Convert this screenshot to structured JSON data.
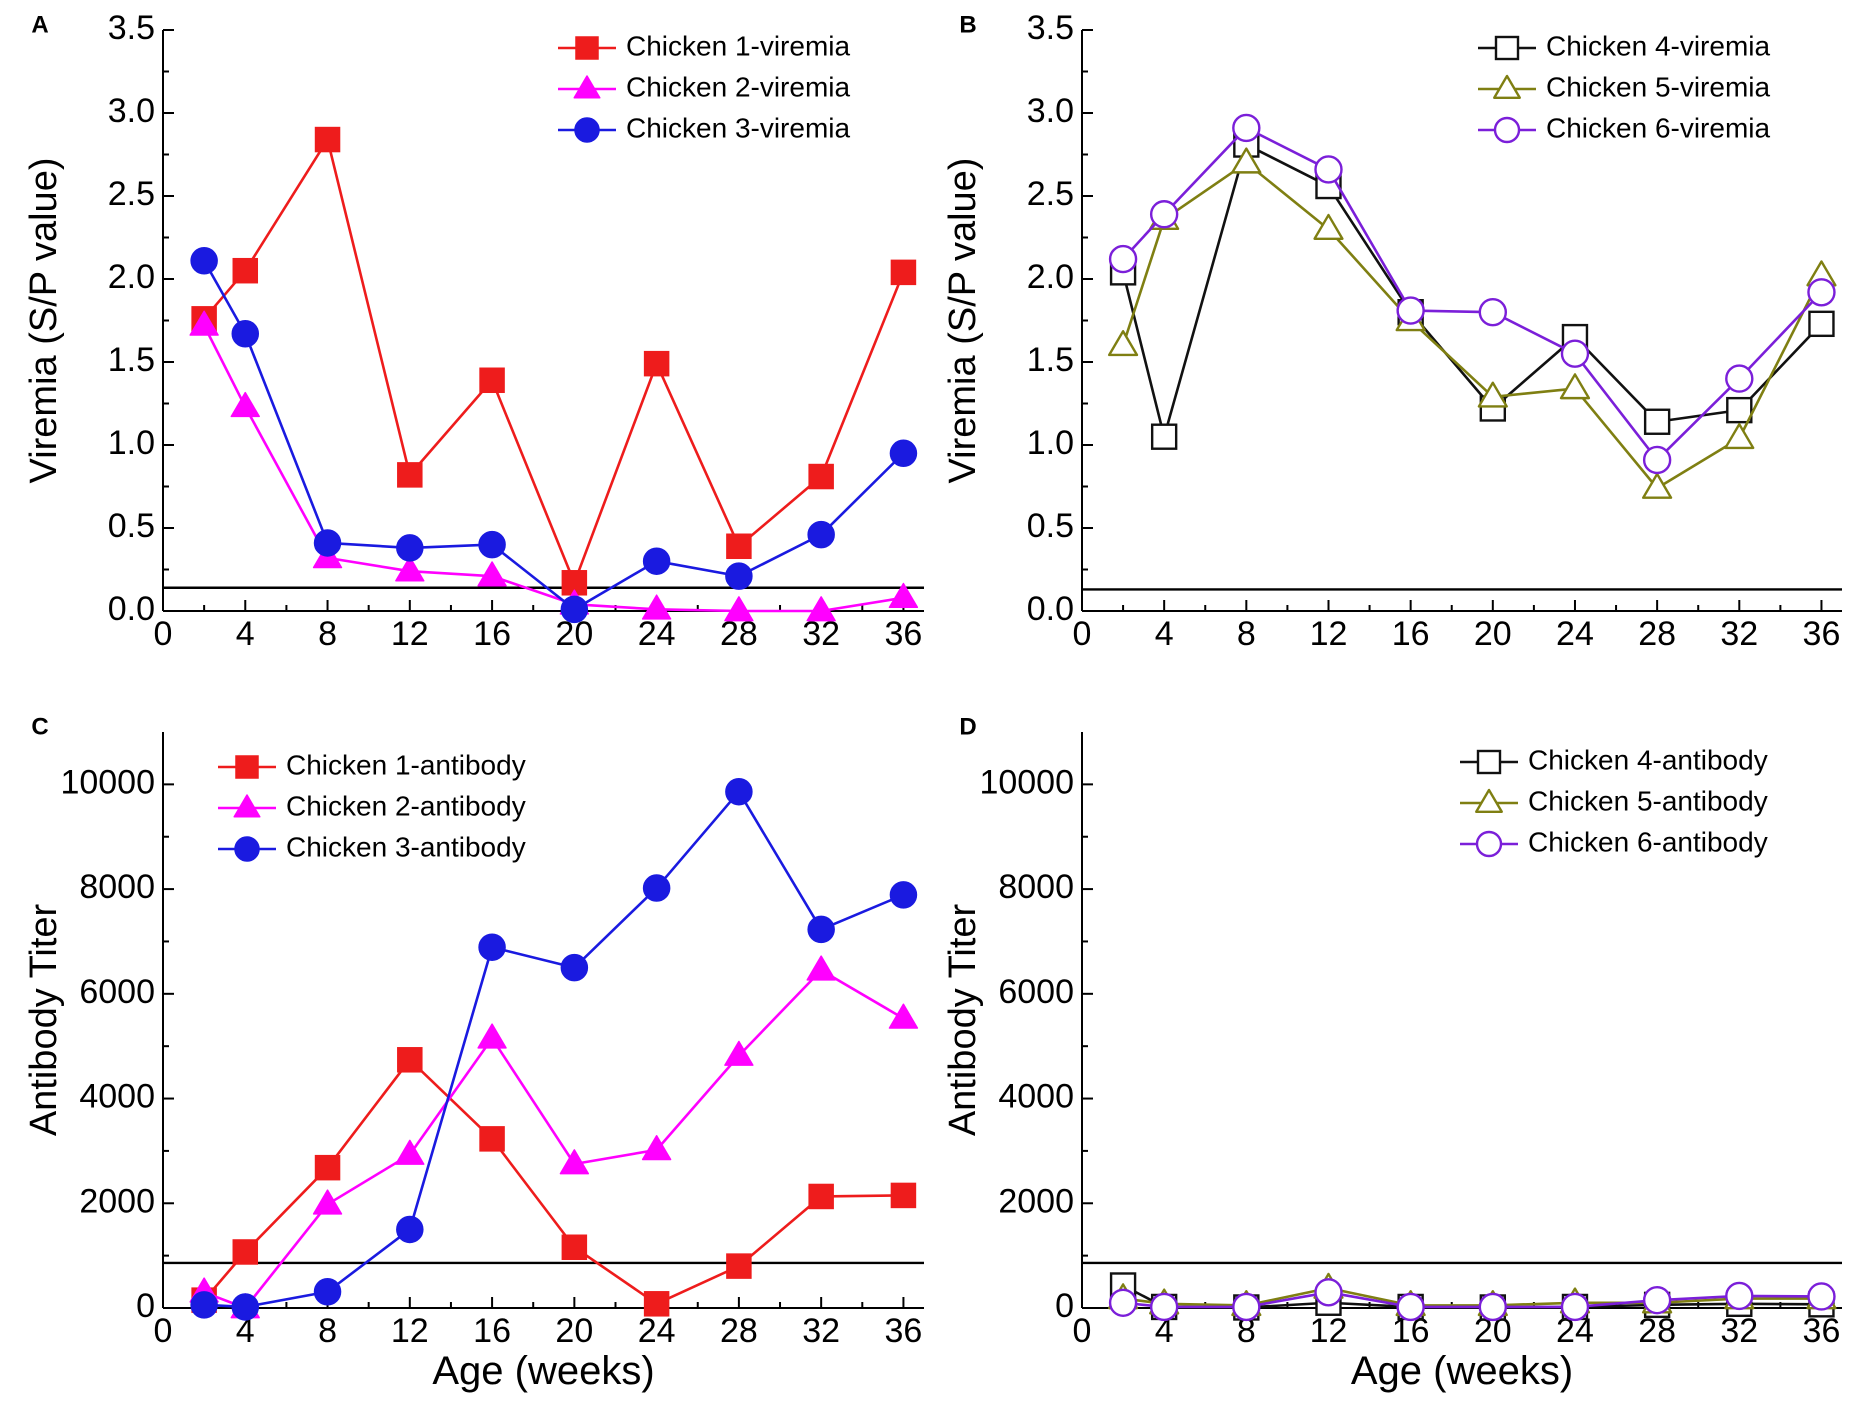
{
  "figure": {
    "x_categories": [
      2,
      4,
      8,
      12,
      16,
      20,
      24,
      28,
      32,
      36
    ]
  },
  "chart_data": [
    {
      "id": "A",
      "panel_label": "A",
      "type": "line",
      "xlabel": "",
      "ylabel": "Viremia (S/P value)",
      "xlim": [
        0,
        37
      ],
      "ylim": [
        0,
        3.5
      ],
      "xticks": [
        "0",
        "4",
        "8",
        "12",
        "16",
        "20",
        "24",
        "28",
        "32",
        "36"
      ],
      "xtick_values": [
        0,
        4,
        8,
        12,
        16,
        20,
        24,
        28,
        32,
        36
      ],
      "yticks": [
        "0.0",
        "0.5",
        "1.0",
        "1.5",
        "2.0",
        "2.5",
        "3.0",
        "3.5"
      ],
      "ytick_values": [
        0,
        0.5,
        1.0,
        1.5,
        2.0,
        2.5,
        3.0,
        3.5
      ],
      "cutoff": 0.14,
      "legend_position": "top-right",
      "x": [
        2,
        4,
        8,
        12,
        16,
        20,
        24,
        28,
        32,
        36
      ],
      "series": [
        {
          "name": "Chicken 1-viremia",
          "marker": "square",
          "filled": true,
          "color": "#ee1c1c",
          "values": [
            1.76,
            2.05,
            2.84,
            0.82,
            1.39,
            0.17,
            1.49,
            0.39,
            0.81,
            2.04
          ]
        },
        {
          "name": "Chicken 2-viremia",
          "marker": "triangle",
          "filled": true,
          "color": "#ff00ff",
          "values": [
            1.72,
            1.23,
            0.32,
            0.24,
            0.21,
            0.04,
            0.01,
            0.0,
            0.0,
            0.08
          ]
        },
        {
          "name": "Chicken 3-viremia",
          "marker": "circle",
          "filled": true,
          "color": "#1a1ae0",
          "values": [
            2.11,
            1.67,
            0.41,
            0.38,
            0.4,
            0.01,
            0.3,
            0.21,
            0.46,
            0.95
          ]
        }
      ]
    },
    {
      "id": "B",
      "panel_label": "B",
      "type": "line",
      "xlabel": "",
      "ylabel": "Viremia (S/P value)",
      "xlim": [
        0,
        37
      ],
      "ylim": [
        0,
        3.5
      ],
      "xticks": [
        "0",
        "4",
        "8",
        "12",
        "16",
        "20",
        "24",
        "28",
        "32",
        "36"
      ],
      "xtick_values": [
        0,
        4,
        8,
        12,
        16,
        20,
        24,
        28,
        32,
        36
      ],
      "yticks": [
        "0.0",
        "0.5",
        "1.0",
        "1.5",
        "2.0",
        "2.5",
        "3.0",
        "3.5"
      ],
      "ytick_values": [
        0,
        0.5,
        1.0,
        1.5,
        2.0,
        2.5,
        3.0,
        3.5
      ],
      "cutoff": 0.13,
      "legend_position": "top-right",
      "x": [
        2,
        4,
        8,
        12,
        16,
        20,
        24,
        28,
        32,
        36
      ],
      "series": [
        {
          "name": "Chicken 4-viremia",
          "marker": "square",
          "filled": false,
          "color": "#111111",
          "values": [
            2.04,
            1.05,
            2.81,
            2.56,
            1.8,
            1.22,
            1.65,
            1.14,
            1.21,
            1.73
          ]
        },
        {
          "name": "Chicken 5-viremia",
          "marker": "triangle",
          "filled": false,
          "color": "#7f7f12",
          "values": [
            1.6,
            2.36,
            2.7,
            2.3,
            1.75,
            1.29,
            1.34,
            0.74,
            1.04,
            2.02
          ]
        },
        {
          "name": "Chicken 6-viremia",
          "marker": "circle",
          "filled": false,
          "color": "#7b1fd9",
          "values": [
            2.12,
            2.39,
            2.91,
            2.66,
            1.81,
            1.8,
            1.55,
            0.91,
            1.4,
            1.92
          ]
        }
      ]
    },
    {
      "id": "C",
      "panel_label": "C",
      "type": "line",
      "xlabel": "Age (weeks)",
      "ylabel": "Antibody Titer",
      "xlim": [
        0,
        37
      ],
      "ylim": [
        0,
        11000
      ],
      "xticks": [
        "0",
        "4",
        "8",
        "12",
        "16",
        "20",
        "24",
        "28",
        "32",
        "36"
      ],
      "xtick_values": [
        0,
        4,
        8,
        12,
        16,
        20,
        24,
        28,
        32,
        36
      ],
      "yticks": [
        "0",
        "2000",
        "4000",
        "6000",
        "8000",
        "10000"
      ],
      "ytick_values": [
        0,
        2000,
        4000,
        6000,
        8000,
        10000
      ],
      "cutoff": 860,
      "legend_position": "top-left",
      "x": [
        2,
        4,
        8,
        12,
        16,
        20,
        24,
        28,
        32,
        36
      ],
      "series": [
        {
          "name": "Chicken 1-antibody",
          "marker": "square",
          "filled": true,
          "color": "#ee1c1c",
          "values": [
            150,
            1070,
            2680,
            4740,
            3230,
            1160,
            80,
            800,
            2130,
            2150
          ]
        },
        {
          "name": "Chicken 2-antibody",
          "marker": "triangle",
          "filled": true,
          "color": "#ff00ff",
          "values": [
            300,
            0,
            1980,
            2930,
            5150,
            2750,
            3020,
            4820,
            6450,
            5530
          ]
        },
        {
          "name": "Chicken 3-antibody",
          "marker": "circle",
          "filled": true,
          "color": "#1a1ae0",
          "values": [
            60,
            20,
            310,
            1500,
            6890,
            6500,
            8020,
            9860,
            7230,
            7890
          ]
        }
      ]
    },
    {
      "id": "D",
      "panel_label": "D",
      "type": "line",
      "xlabel": "Age (weeks)",
      "ylabel": "Antibody Titer",
      "xlim": [
        0,
        37
      ],
      "ylim": [
        0,
        11000
      ],
      "xticks": [
        "0",
        "4",
        "8",
        "12",
        "16",
        "20",
        "24",
        "28",
        "32",
        "36"
      ],
      "xtick_values": [
        0,
        4,
        8,
        12,
        16,
        20,
        24,
        28,
        32,
        36
      ],
      "yticks": [
        "0",
        "2000",
        "4000",
        "6000",
        "8000",
        "10000"
      ],
      "ytick_values": [
        0,
        2000,
        4000,
        6000,
        8000,
        10000
      ],
      "cutoff": 860,
      "legend_position": "top-right",
      "x": [
        2,
        4,
        8,
        12,
        16,
        20,
        24,
        28,
        32,
        36
      ],
      "series": [
        {
          "name": "Chicken 4-antibody",
          "marker": "square",
          "filled": false,
          "color": "#111111",
          "values": [
            430,
            20,
            10,
            100,
            20,
            10,
            20,
            60,
            80,
            70
          ]
        },
        {
          "name": "Chicken 5-antibody",
          "marker": "triangle",
          "filled": false,
          "color": "#7f7f12",
          "values": [
            180,
            80,
            50,
            380,
            50,
            50,
            100,
            100,
            180,
            180
          ]
        },
        {
          "name": "Chicken 6-antibody",
          "marker": "circle",
          "filled": false,
          "color": "#7b1fd9",
          "values": [
            100,
            20,
            20,
            300,
            20,
            20,
            20,
            150,
            230,
            220
          ]
        }
      ]
    }
  ]
}
